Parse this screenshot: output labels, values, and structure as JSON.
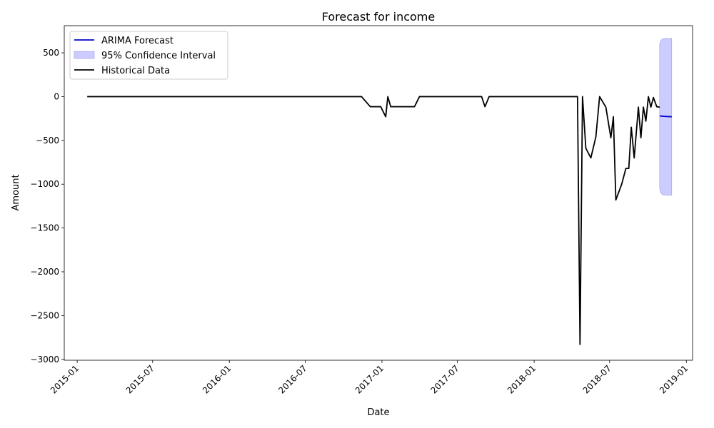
{
  "chart_data": {
    "type": "line",
    "title": "Forecast for income",
    "xlabel": "Date",
    "ylabel": "Amount",
    "xlim": [
      "2014-12-01",
      "2019-01-16"
    ],
    "ylim": [
      -3010,
      810
    ],
    "xticks": [
      {
        "date": "2015-01-01",
        "label": "2015-01"
      },
      {
        "date": "2015-07-01",
        "label": "2015-07"
      },
      {
        "date": "2016-01-01",
        "label": "2016-01"
      },
      {
        "date": "2016-07-01",
        "label": "2016-07"
      },
      {
        "date": "2017-01-01",
        "label": "2017-01"
      },
      {
        "date": "2017-07-01",
        "label": "2017-07"
      },
      {
        "date": "2018-01-01",
        "label": "2018-01"
      },
      {
        "date": "2018-07-01",
        "label": "2018-07"
      },
      {
        "date": "2019-01-01",
        "label": "2019-01"
      }
    ],
    "yticks": [
      {
        "value": 500,
        "label": "500"
      },
      {
        "value": 0,
        "label": "0"
      },
      {
        "value": -500,
        "label": "−500"
      },
      {
        "value": -1000,
        "label": "−1000"
      },
      {
        "value": -1500,
        "label": "−1500"
      },
      {
        "value": -2000,
        "label": "−2000"
      },
      {
        "value": -2500,
        "label": "−2500"
      },
      {
        "value": -3000,
        "label": "−3000"
      }
    ],
    "grid": false,
    "legend_position": "top-left",
    "legend": [
      {
        "label": "ARIMA Forecast",
        "kind": "line",
        "color": "#0000cc"
      },
      {
        "label": "95% Confidence Interval",
        "kind": "patch",
        "color": "#ccccff"
      },
      {
        "label": "Historical Data",
        "kind": "line",
        "color": "#000000"
      }
    ],
    "series": [
      {
        "role": "historical",
        "color": "#000000",
        "x": [
          "2015-01-25",
          "2016-11-13",
          "2016-12-04",
          "2016-12-29",
          "2017-01-10",
          "2017-01-15",
          "2017-01-22",
          "2017-03-20",
          "2017-04-01",
          "2017-08-28",
          "2017-09-05",
          "2017-09-15",
          "2018-04-15",
          "2018-04-21",
          "2018-04-27",
          "2018-05-05",
          "2018-05-17",
          "2018-05-29",
          "2018-06-07",
          "2018-06-22",
          "2018-07-04",
          "2018-07-10",
          "2018-07-16",
          "2018-07-30",
          "2018-08-09",
          "2018-08-16",
          "2018-08-22",
          "2018-08-29",
          "2018-09-08",
          "2018-09-14",
          "2018-09-20",
          "2018-09-26",
          "2018-10-02",
          "2018-10-08",
          "2018-10-14",
          "2018-10-22",
          "2018-10-29"
        ],
        "y": [
          0,
          0,
          -115,
          -115,
          -230,
          0,
          -115,
          -115,
          0,
          0,
          -115,
          0,
          0,
          -2830,
          0,
          -590,
          -700,
          -460,
          0,
          -120,
          -470,
          -230,
          -1180,
          -1000,
          -820,
          -820,
          -350,
          -700,
          -120,
          -470,
          -120,
          -280,
          0,
          -120,
          -10,
          -115,
          -120
        ]
      },
      {
        "role": "forecast",
        "name": "ARIMA Forecast",
        "color": "#0000cc",
        "x": [
          "2018-10-29",
          "2018-11-08",
          "2018-11-20",
          "2018-11-27"
        ],
        "y": [
          -220,
          -225,
          -228,
          -230
        ]
      }
    ],
    "confidence_interval": {
      "color": "#ccccff",
      "edge_color": "#9999ee",
      "x": [
        "2018-10-29",
        "2018-11-01",
        "2018-11-05",
        "2018-11-13",
        "2018-11-27"
      ],
      "upper": [
        600,
        640,
        660,
        665,
        665
      ],
      "lower": [
        -1050,
        -1100,
        -1120,
        -1125,
        -1125
      ]
    }
  }
}
